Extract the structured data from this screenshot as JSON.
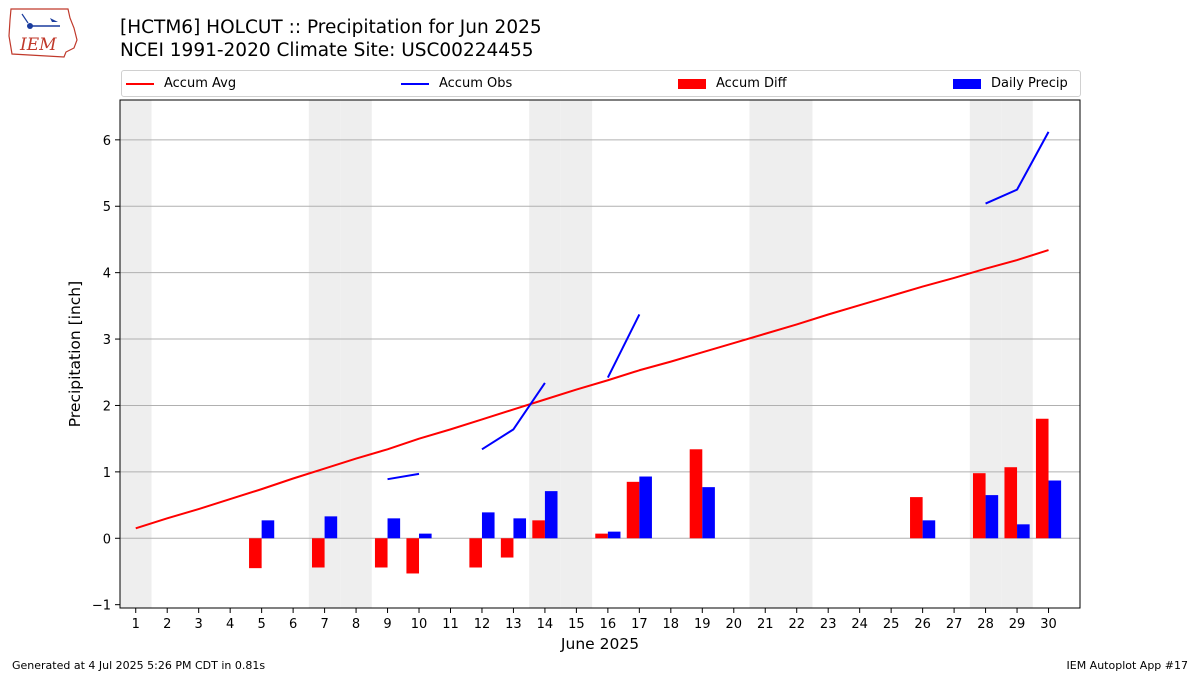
{
  "header": {
    "title_line1": "[HCTM6] HOLCUT :: Precipitation for Jun 2025",
    "title_line2": "NCEI 1991-2020 Climate Site: USC00224455",
    "logo_text": "IEM"
  },
  "footer": {
    "left": "Generated at 4 Jul 2025 5:26 PM CDT in 0.81s",
    "right": "IEM Autoplot App #17"
  },
  "colors": {
    "accum_avg": "#ff0000",
    "accum_obs": "#0000ff",
    "accum_diff": "#ff0000",
    "daily_precip": "#0000ff",
    "weekend_shade": "#eeeeee",
    "grid": "#b0b0b0"
  },
  "chart_data": {
    "type": "bar",
    "xlabel": "June 2025",
    "ylabel": "Precipitation [inch]",
    "xlim": [
      0.5,
      31
    ],
    "ylim": [
      -1.05,
      6.6
    ],
    "grid": "horizontal",
    "legend_placement": "top",
    "days": [
      1,
      2,
      3,
      4,
      5,
      6,
      7,
      8,
      9,
      10,
      11,
      12,
      13,
      14,
      15,
      16,
      17,
      18,
      19,
      20,
      21,
      22,
      23,
      24,
      25,
      26,
      27,
      28,
      29,
      30
    ],
    "yticks": [
      -1,
      0,
      1,
      2,
      3,
      4,
      5,
      6
    ],
    "shaded_days": [
      1,
      7,
      8,
      14,
      15,
      21,
      22,
      28,
      29
    ],
    "series": [
      {
        "name": "Accum Avg",
        "kind": "line",
        "values": [
          0.15,
          0.3,
          0.44,
          0.59,
          0.74,
          0.9,
          1.05,
          1.2,
          1.34,
          1.5,
          1.64,
          1.79,
          1.94,
          2.09,
          2.24,
          2.38,
          2.53,
          2.66,
          2.8,
          2.94,
          3.08,
          3.22,
          3.37,
          3.51,
          3.65,
          3.79,
          3.92,
          4.06,
          4.19,
          4.34
        ]
      },
      {
        "name": "Accum Obs",
        "kind": "line",
        "values": [
          null,
          null,
          null,
          null,
          null,
          null,
          null,
          null,
          0.89,
          0.97,
          null,
          1.34,
          1.64,
          2.34,
          null,
          2.42,
          3.37,
          null,
          null,
          null,
          null,
          null,
          null,
          null,
          null,
          null,
          null,
          5.04,
          5.25,
          6.12
        ]
      },
      {
        "name": "Accum Diff",
        "kind": "bar",
        "values": [
          null,
          null,
          null,
          null,
          -0.45,
          null,
          -0.44,
          null,
          -0.44,
          -0.53,
          null,
          -0.44,
          -0.29,
          0.27,
          null,
          0.07,
          0.85,
          null,
          1.34,
          null,
          null,
          null,
          null,
          null,
          null,
          0.62,
          null,
          0.98,
          1.07,
          1.8
        ]
      },
      {
        "name": "Daily Precip",
        "kind": "bar",
        "values": [
          null,
          null,
          null,
          null,
          0.27,
          null,
          0.33,
          null,
          0.3,
          0.07,
          null,
          0.39,
          0.3,
          0.71,
          null,
          0.1,
          0.93,
          null,
          0.77,
          null,
          null,
          null,
          null,
          null,
          null,
          0.27,
          null,
          0.65,
          0.21,
          0.87
        ]
      }
    ]
  }
}
